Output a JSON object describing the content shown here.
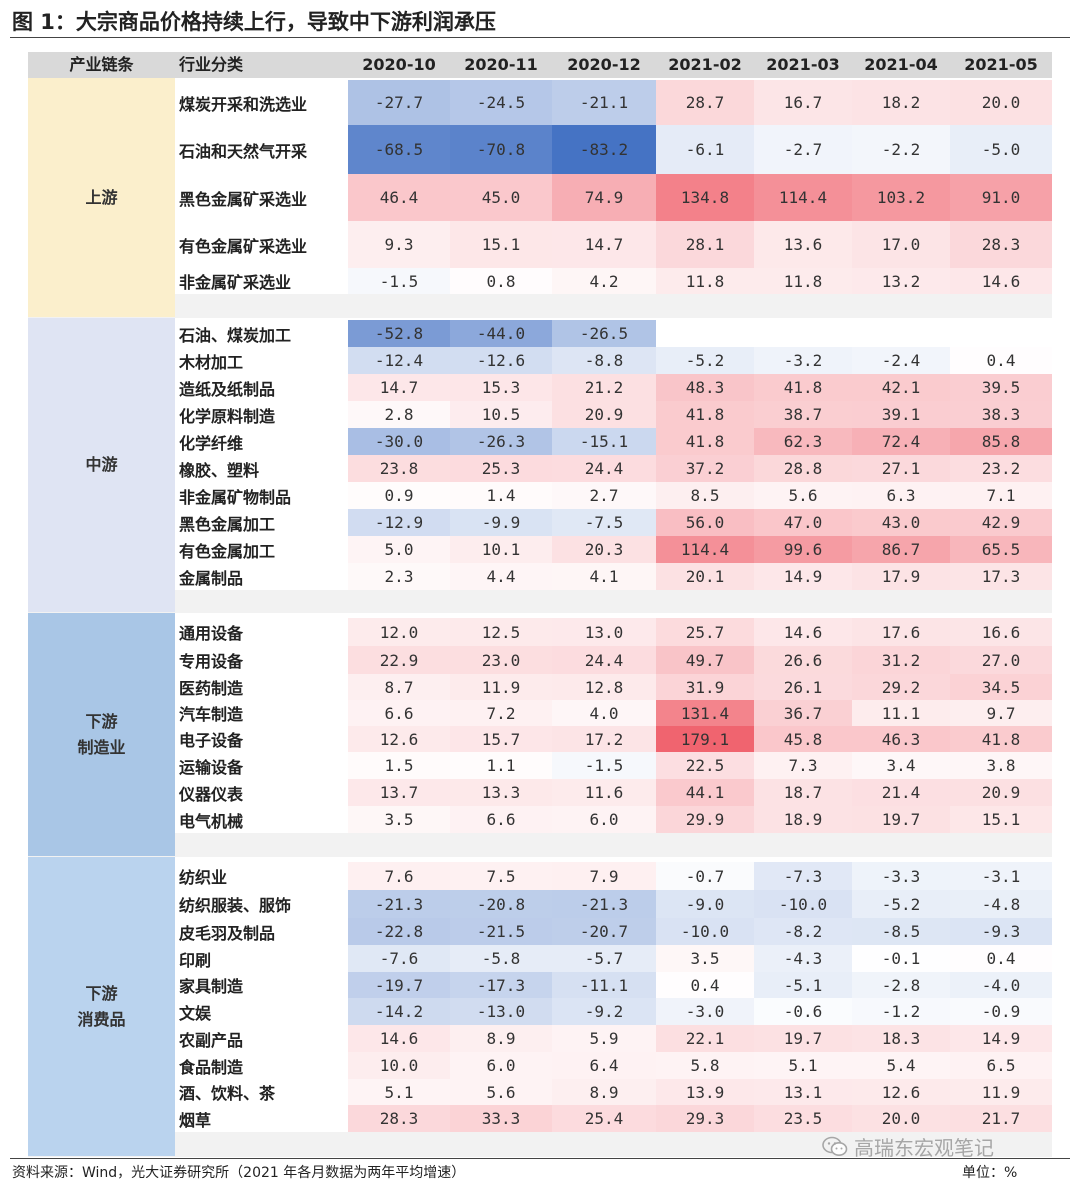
{
  "title": "图 1：大宗商品价格持续上行，导致中下游利润承压",
  "header": {
    "chain_label": "产业链条",
    "industry_label": "行业分类",
    "months": [
      "2020-10",
      "2020-11",
      "2020-12",
      "2021-02",
      "2021-03",
      "2021-04",
      "2021-05"
    ]
  },
  "groups": [
    {
      "name": "上游",
      "rows": [
        {
          "name": "煤炭开采和洗选业",
          "values": [
            "-27.7",
            "-24.5",
            "-21.1",
            "28.7",
            "16.7",
            "18.2",
            "20.0"
          ]
        },
        {
          "name": "石油和天然气开采",
          "values": [
            "-68.5",
            "-70.8",
            "-83.2",
            "-6.1",
            "-2.7",
            "-2.2",
            "-5.0"
          ]
        },
        {
          "name": "黑色金属矿采选业",
          "values": [
            "46.4",
            "45.0",
            "74.9",
            "134.8",
            "114.4",
            "103.2",
            "91.0"
          ]
        },
        {
          "name": "有色金属矿采选业",
          "values": [
            "9.3",
            "15.1",
            "14.7",
            "28.1",
            "13.6",
            "17.0",
            "28.3"
          ]
        },
        {
          "name": "非金属矿采选业",
          "values": [
            "-1.5",
            "0.8",
            "4.2",
            "11.8",
            "11.8",
            "13.2",
            "14.6"
          ]
        }
      ]
    },
    {
      "name": "中游",
      "rows": [
        {
          "name": "石油、煤炭加工",
          "values": [
            "-52.8",
            "-44.0",
            "-26.5",
            "",
            "",
            "",
            ""
          ]
        },
        {
          "name": "木材加工",
          "values": [
            "-12.4",
            "-12.6",
            "-8.8",
            "-5.2",
            "-3.2",
            "-2.4",
            "0.4"
          ]
        },
        {
          "name": "造纸及纸制品",
          "values": [
            "14.7",
            "15.3",
            "21.2",
            "48.3",
            "41.8",
            "42.1",
            "39.5"
          ]
        },
        {
          "name": "化学原料制造",
          "values": [
            "2.8",
            "10.5",
            "20.9",
            "41.8",
            "38.7",
            "39.1",
            "38.3"
          ]
        },
        {
          "name": "化学纤维",
          "values": [
            "-30.0",
            "-26.3",
            "-15.1",
            "41.8",
            "62.3",
            "72.4",
            "85.8"
          ]
        },
        {
          "name": "橡胶、塑料",
          "values": [
            "23.8",
            "25.3",
            "24.4",
            "37.2",
            "28.8",
            "27.1",
            "23.2"
          ]
        },
        {
          "name": "非金属矿物制品",
          "values": [
            "0.9",
            "1.4",
            "2.7",
            "8.5",
            "5.6",
            "6.3",
            "7.1"
          ]
        },
        {
          "name": "黑色金属加工",
          "values": [
            "-12.9",
            "-9.9",
            "-7.5",
            "56.0",
            "47.0",
            "43.0",
            "42.9"
          ]
        },
        {
          "name": "有色金属加工",
          "values": [
            "5.0",
            "10.1",
            "20.3",
            "114.4",
            "99.6",
            "86.7",
            "65.5"
          ]
        },
        {
          "name": "金属制品",
          "values": [
            "2.3",
            "4.4",
            "4.1",
            "20.1",
            "14.9",
            "17.9",
            "17.3"
          ]
        }
      ]
    },
    {
      "name": "下游\n制造业",
      "rows": [
        {
          "name": "通用设备",
          "values": [
            "12.0",
            "12.5",
            "13.0",
            "25.7",
            "14.6",
            "17.6",
            "16.6"
          ]
        },
        {
          "name": "专用设备",
          "values": [
            "22.9",
            "23.0",
            "24.4",
            "49.7",
            "26.6",
            "31.2",
            "27.0"
          ]
        },
        {
          "name": "医药制造",
          "values": [
            "8.7",
            "11.9",
            "12.8",
            "31.9",
            "26.1",
            "29.2",
            "34.5"
          ]
        },
        {
          "name": "汽车制造",
          "values": [
            "6.6",
            "7.2",
            "4.0",
            "131.4",
            "36.7",
            "11.1",
            "9.7"
          ]
        },
        {
          "name": "电子设备",
          "values": [
            "12.6",
            "15.7",
            "17.2",
            "179.1",
            "45.8",
            "46.3",
            "41.8"
          ]
        },
        {
          "name": "运输设备",
          "values": [
            "1.5",
            "1.1",
            "-1.5",
            "22.5",
            "7.3",
            "3.4",
            "3.8"
          ]
        },
        {
          "name": "仪器仪表",
          "values": [
            "13.7",
            "13.3",
            "11.6",
            "44.1",
            "18.7",
            "21.4",
            "20.9"
          ]
        },
        {
          "name": "电气机械",
          "values": [
            "3.5",
            "6.6",
            "6.0",
            "29.9",
            "18.9",
            "19.7",
            "15.1"
          ]
        }
      ]
    },
    {
      "name": "下游\n消费品",
      "rows": [
        {
          "name": "纺织业",
          "values": [
            "7.6",
            "7.5",
            "7.9",
            "-0.7",
            "-7.3",
            "-3.3",
            "-3.1"
          ]
        },
        {
          "name": "纺织服装、服饰",
          "values": [
            "-21.3",
            "-20.8",
            "-21.3",
            "-9.0",
            "-10.0",
            "-5.2",
            "-4.8"
          ]
        },
        {
          "name": "皮毛羽及制品",
          "values": [
            "-22.8",
            "-21.5",
            "-20.7",
            "-10.0",
            "-8.2",
            "-8.5",
            "-9.3"
          ]
        },
        {
          "name": "印刷",
          "values": [
            "-7.6",
            "-5.8",
            "-5.7",
            "3.5",
            "-4.3",
            "-0.1",
            "0.4"
          ]
        },
        {
          "name": "家具制造",
          "values": [
            "-19.7",
            "-17.3",
            "-11.1",
            "0.4",
            "-5.1",
            "-2.8",
            "-4.0"
          ]
        },
        {
          "name": "文娱",
          "values": [
            "-14.2",
            "-13.0",
            "-9.2",
            "-3.0",
            "-0.6",
            "-1.2",
            "-0.9"
          ]
        },
        {
          "name": "农副产品",
          "values": [
            "14.6",
            "8.9",
            "5.9",
            "22.1",
            "19.7",
            "18.3",
            "14.9"
          ]
        },
        {
          "name": "食品制造",
          "values": [
            "10.0",
            "6.0",
            "6.4",
            "5.8",
            "5.1",
            "5.4",
            "6.5"
          ]
        },
        {
          "name": "酒、饮料、茶",
          "values": [
            "5.1",
            "5.6",
            "8.9",
            "13.9",
            "13.1",
            "12.6",
            "11.9"
          ]
        },
        {
          "name": "烟草",
          "values": [
            "28.3",
            "33.3",
            "25.4",
            "29.3",
            "23.5",
            "20.0",
            "21.7"
          ]
        }
      ]
    }
  ],
  "colors": {
    "upstream": "#fbefcc",
    "midstream": "#dfe4f3",
    "down_mfg": "#a9c6e6",
    "down_consumer": "#bad3ee",
    "header": "#d9d9d9",
    "positive": "#f0636e",
    "negative": "#4472c4"
  },
  "footer": {
    "source": "资料来源：Wind，光大证券研究所（2021 年各月数据为两年平均增速）",
    "unit": "单位：%"
  },
  "watermark": {
    "text": "高瑞东宏观笔记",
    "icon": "wechat-icon"
  }
}
